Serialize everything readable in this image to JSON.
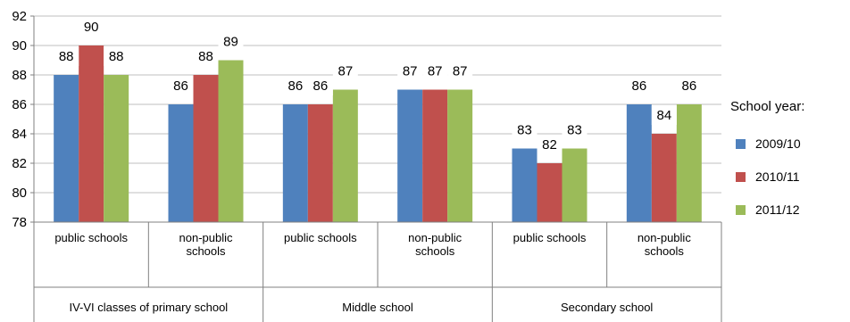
{
  "chart_data": {
    "type": "bar",
    "groups": [
      {
        "label": "IV-VI classes of primary school",
        "categories": [
          "public schools",
          "non-public schools"
        ]
      },
      {
        "label": "Middle school",
        "categories": [
          "public schools",
          "non-public schools"
        ]
      },
      {
        "label": "Secondary school",
        "categories": [
          "public schools",
          "non-public schools"
        ]
      }
    ],
    "categories": [
      "public schools",
      "non-public schools",
      "public schools",
      "non-public schools",
      "public schools",
      "non-public schools"
    ],
    "series": [
      {
        "name": "2009/10",
        "color": "#4F81BD",
        "values": [
          88,
          86,
          86,
          87,
          83,
          86
        ]
      },
      {
        "name": "2010/11",
        "color": "#C0504D",
        "values": [
          90,
          88,
          86,
          87,
          82,
          84
        ]
      },
      {
        "name": "2011/12",
        "color": "#9BBB59",
        "values": [
          88,
          89,
          87,
          87,
          83,
          86
        ]
      }
    ],
    "yticks": [
      78,
      80,
      82,
      84,
      86,
      88,
      90,
      92
    ],
    "ylim": [
      78,
      92
    ],
    "grid": true,
    "legend_title": "School year:",
    "legend_position": "right",
    "data_labels": true
  }
}
